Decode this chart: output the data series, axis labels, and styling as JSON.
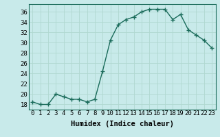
{
  "x": [
    0,
    1,
    2,
    3,
    4,
    5,
    6,
    7,
    8,
    9,
    10,
    11,
    12,
    13,
    14,
    15,
    16,
    17,
    18,
    19,
    20,
    21,
    22,
    23
  ],
  "y": [
    18.5,
    18.0,
    18.0,
    20.0,
    19.5,
    19.0,
    19.0,
    18.5,
    19.0,
    24.5,
    30.5,
    33.5,
    34.5,
    35.0,
    36.0,
    36.5,
    36.5,
    36.5,
    34.5,
    35.5,
    32.5,
    31.5,
    30.5,
    29.0
  ],
  "line_color": "#1a6b5a",
  "marker": "+",
  "markersize": 4,
  "linewidth": 1.0,
  "bg_color": "#c8eaea",
  "grid_color": "#b0d8d0",
  "xlabel": "Humidex (Indice chaleur)",
  "xlabel_fontsize": 7.5,
  "tick_fontsize": 6.5,
  "yticks": [
    18,
    20,
    22,
    24,
    26,
    28,
    30,
    32,
    34,
    36
  ],
  "ylim": [
    17.0,
    37.5
  ],
  "xlim": [
    -0.5,
    23.5
  ]
}
